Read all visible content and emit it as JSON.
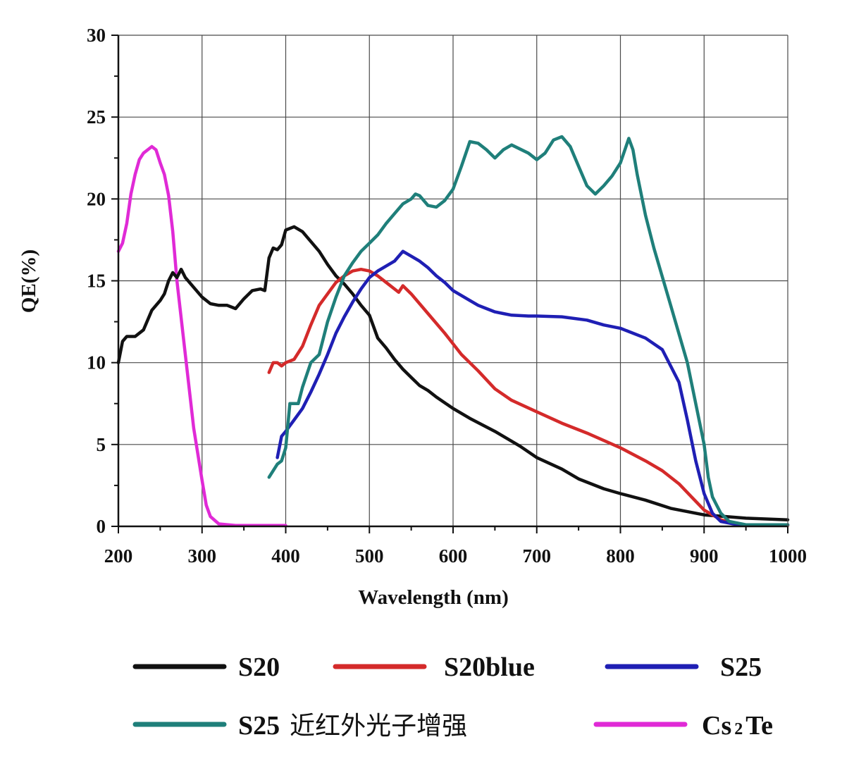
{
  "chart_data": {
    "type": "line",
    "xlabel": "Wavelength (nm)",
    "ylabel": "QE(%)",
    "xlim": [
      200,
      1000
    ],
    "ylim": [
      0,
      30
    ],
    "x_ticks": [
      "200",
      "300",
      "400",
      "500",
      "600",
      "700",
      "800",
      "900",
      "1000"
    ],
    "y_ticks": [
      "0",
      "5",
      "10",
      "15",
      "20",
      "25",
      "30"
    ],
    "grid": true,
    "legend_position": "bottom",
    "series": [
      {
        "name": "S20",
        "color": "#111111",
        "points": [
          [
            200,
            10
          ],
          [
            205,
            11.3
          ],
          [
            210,
            11.6
          ],
          [
            220,
            11.6
          ],
          [
            230,
            12
          ],
          [
            240,
            13.2
          ],
          [
            250,
            13.8
          ],
          [
            255,
            14.2
          ],
          [
            260,
            15
          ],
          [
            265,
            15.5
          ],
          [
            270,
            15.2
          ],
          [
            275,
            15.7
          ],
          [
            280,
            15.2
          ],
          [
            290,
            14.6
          ],
          [
            300,
            14
          ],
          [
            310,
            13.6
          ],
          [
            320,
            13.5
          ],
          [
            330,
            13.5
          ],
          [
            340,
            13.3
          ],
          [
            350,
            13.9
          ],
          [
            360,
            14.4
          ],
          [
            370,
            14.5
          ],
          [
            375,
            14.4
          ],
          [
            380,
            16.4
          ],
          [
            385,
            17
          ],
          [
            390,
            16.9
          ],
          [
            395,
            17.2
          ],
          [
            400,
            18.1
          ],
          [
            410,
            18.3
          ],
          [
            420,
            18
          ],
          [
            430,
            17.4
          ],
          [
            440,
            16.8
          ],
          [
            450,
            16
          ],
          [
            460,
            15.3
          ],
          [
            470,
            14.8
          ],
          [
            480,
            14.2
          ],
          [
            490,
            13.5
          ],
          [
            500,
            12.9
          ],
          [
            510,
            11.5
          ],
          [
            520,
            10.9
          ],
          [
            530,
            10.2
          ],
          [
            540,
            9.6
          ],
          [
            550,
            9.1
          ],
          [
            560,
            8.6
          ],
          [
            570,
            8.3
          ],
          [
            580,
            7.9
          ],
          [
            600,
            7.2
          ],
          [
            620,
            6.6
          ],
          [
            650,
            5.8
          ],
          [
            680,
            4.9
          ],
          [
            700,
            4.2
          ],
          [
            730,
            3.5
          ],
          [
            750,
            2.9
          ],
          [
            780,
            2.3
          ],
          [
            800,
            2
          ],
          [
            830,
            1.6
          ],
          [
            860,
            1.1
          ],
          [
            900,
            0.7
          ],
          [
            950,
            0.5
          ],
          [
            1000,
            0.4
          ]
        ]
      },
      {
        "name": "S20blue",
        "color": "#d42a2a",
        "points": [
          [
            380,
            9.4
          ],
          [
            385,
            10
          ],
          [
            390,
            10
          ],
          [
            395,
            9.8
          ],
          [
            400,
            10
          ],
          [
            410,
            10.2
          ],
          [
            420,
            11
          ],
          [
            430,
            12.3
          ],
          [
            440,
            13.5
          ],
          [
            450,
            14.2
          ],
          [
            460,
            14.9
          ],
          [
            470,
            15.3
          ],
          [
            480,
            15.6
          ],
          [
            490,
            15.7
          ],
          [
            500,
            15.6
          ],
          [
            510,
            15.3
          ],
          [
            520,
            14.9
          ],
          [
            530,
            14.5
          ],
          [
            535,
            14.3
          ],
          [
            540,
            14.7
          ],
          [
            550,
            14.2
          ],
          [
            570,
            13
          ],
          [
            590,
            11.8
          ],
          [
            610,
            10.5
          ],
          [
            630,
            9.5
          ],
          [
            650,
            8.4
          ],
          [
            670,
            7.7
          ],
          [
            700,
            7
          ],
          [
            730,
            6.3
          ],
          [
            760,
            5.7
          ],
          [
            800,
            4.8
          ],
          [
            830,
            4
          ],
          [
            850,
            3.4
          ],
          [
            870,
            2.6
          ],
          [
            885,
            1.8
          ],
          [
            900,
            1
          ],
          [
            920,
            0.4
          ],
          [
            940,
            0.1
          ],
          [
            960,
            0.05
          ],
          [
            1000,
            0.05
          ]
        ]
      },
      {
        "name": "S25",
        "color": "#1f1fb4",
        "points": [
          [
            390,
            4.2
          ],
          [
            395,
            5.5
          ],
          [
            400,
            5.8
          ],
          [
            410,
            6.5
          ],
          [
            420,
            7.2
          ],
          [
            430,
            8.2
          ],
          [
            440,
            9.3
          ],
          [
            450,
            10.5
          ],
          [
            460,
            11.8
          ],
          [
            470,
            12.8
          ],
          [
            480,
            13.7
          ],
          [
            490,
            14.5
          ],
          [
            500,
            15.2
          ],
          [
            510,
            15.6
          ],
          [
            520,
            15.9
          ],
          [
            530,
            16.2
          ],
          [
            540,
            16.8
          ],
          [
            550,
            16.5
          ],
          [
            560,
            16.2
          ],
          [
            570,
            15.8
          ],
          [
            580,
            15.3
          ],
          [
            590,
            14.9
          ],
          [
            600,
            14.4
          ],
          [
            610,
            14.1
          ],
          [
            620,
            13.8
          ],
          [
            630,
            13.5
          ],
          [
            640,
            13.3
          ],
          [
            650,
            13.1
          ],
          [
            660,
            13.0
          ],
          [
            670,
            12.9
          ],
          [
            690,
            12.85
          ],
          [
            700,
            12.85
          ],
          [
            730,
            12.8
          ],
          [
            760,
            12.6
          ],
          [
            780,
            12.3
          ],
          [
            800,
            12.1
          ],
          [
            830,
            11.5
          ],
          [
            850,
            10.8
          ],
          [
            870,
            8.8
          ],
          [
            880,
            6.5
          ],
          [
            890,
            4
          ],
          [
            900,
            2
          ],
          [
            910,
            0.8
          ],
          [
            920,
            0.3
          ],
          [
            940,
            0.1
          ],
          [
            1000,
            0.1
          ]
        ]
      },
      {
        "name": "S25 近红外光子增强",
        "color": "#1f7f7a",
        "points": [
          [
            380,
            3
          ],
          [
            390,
            3.8
          ],
          [
            395,
            4
          ],
          [
            400,
            4.8
          ],
          [
            405,
            7.5
          ],
          [
            415,
            7.5
          ],
          [
            420,
            8.5
          ],
          [
            430,
            10
          ],
          [
            440,
            10.5
          ],
          [
            450,
            12.5
          ],
          [
            460,
            14
          ],
          [
            470,
            15.3
          ],
          [
            480,
            16.1
          ],
          [
            490,
            16.8
          ],
          [
            500,
            17.3
          ],
          [
            510,
            17.8
          ],
          [
            520,
            18.5
          ],
          [
            530,
            19.1
          ],
          [
            540,
            19.7
          ],
          [
            550,
            20
          ],
          [
            555,
            20.3
          ],
          [
            560,
            20.2
          ],
          [
            570,
            19.6
          ],
          [
            580,
            19.5
          ],
          [
            590,
            19.9
          ],
          [
            600,
            20.6
          ],
          [
            610,
            22
          ],
          [
            620,
            23.5
          ],
          [
            630,
            23.4
          ],
          [
            640,
            23
          ],
          [
            650,
            22.5
          ],
          [
            660,
            23
          ],
          [
            670,
            23.3
          ],
          [
            690,
            22.8
          ],
          [
            700,
            22.4
          ],
          [
            710,
            22.8
          ],
          [
            720,
            23.6
          ],
          [
            730,
            23.8
          ],
          [
            740,
            23.2
          ],
          [
            750,
            22
          ],
          [
            760,
            20.8
          ],
          [
            770,
            20.3
          ],
          [
            780,
            20.8
          ],
          [
            790,
            21.4
          ],
          [
            800,
            22.2
          ],
          [
            810,
            23.7
          ],
          [
            815,
            23
          ],
          [
            820,
            21.5
          ],
          [
            830,
            19
          ],
          [
            840,
            17
          ],
          [
            860,
            13.5
          ],
          [
            880,
            10
          ],
          [
            890,
            7.5
          ],
          [
            900,
            5
          ],
          [
            905,
            3
          ],
          [
            910,
            1.8
          ],
          [
            920,
            0.8
          ],
          [
            930,
            0.3
          ],
          [
            950,
            0.1
          ],
          [
            1000,
            0.1
          ]
        ]
      },
      {
        "name": "Cs₂Te",
        "color": "#e02ad6",
        "points": [
          [
            200,
            16.8
          ],
          [
            205,
            17.3
          ],
          [
            210,
            18.5
          ],
          [
            215,
            20.3
          ],
          [
            220,
            21.5
          ],
          [
            225,
            22.4
          ],
          [
            230,
            22.8
          ],
          [
            235,
            23
          ],
          [
            240,
            23.2
          ],
          [
            245,
            23
          ],
          [
            250,
            22.2
          ],
          [
            255,
            21.5
          ],
          [
            260,
            20.2
          ],
          [
            265,
            18
          ],
          [
            270,
            15
          ],
          [
            280,
            10.5
          ],
          [
            290,
            6
          ],
          [
            300,
            2.8
          ],
          [
            305,
            1.3
          ],
          [
            310,
            0.6
          ],
          [
            320,
            0.15
          ],
          [
            340,
            0.05
          ],
          [
            400,
            0.05
          ]
        ]
      }
    ]
  },
  "legend": {
    "items": [
      {
        "label": "S20",
        "color": "#111111"
      },
      {
        "label": "S20blue",
        "color": "#d42a2a"
      },
      {
        "label": "S25",
        "color": "#1f1fb4"
      },
      {
        "label_main": "S25",
        "label_cn": "近红外光子增强",
        "color": "#1f7f7a"
      },
      {
        "label_a": "Cs",
        "label_sub": "2",
        "label_b": "Te",
        "color": "#e02ad6"
      }
    ]
  }
}
